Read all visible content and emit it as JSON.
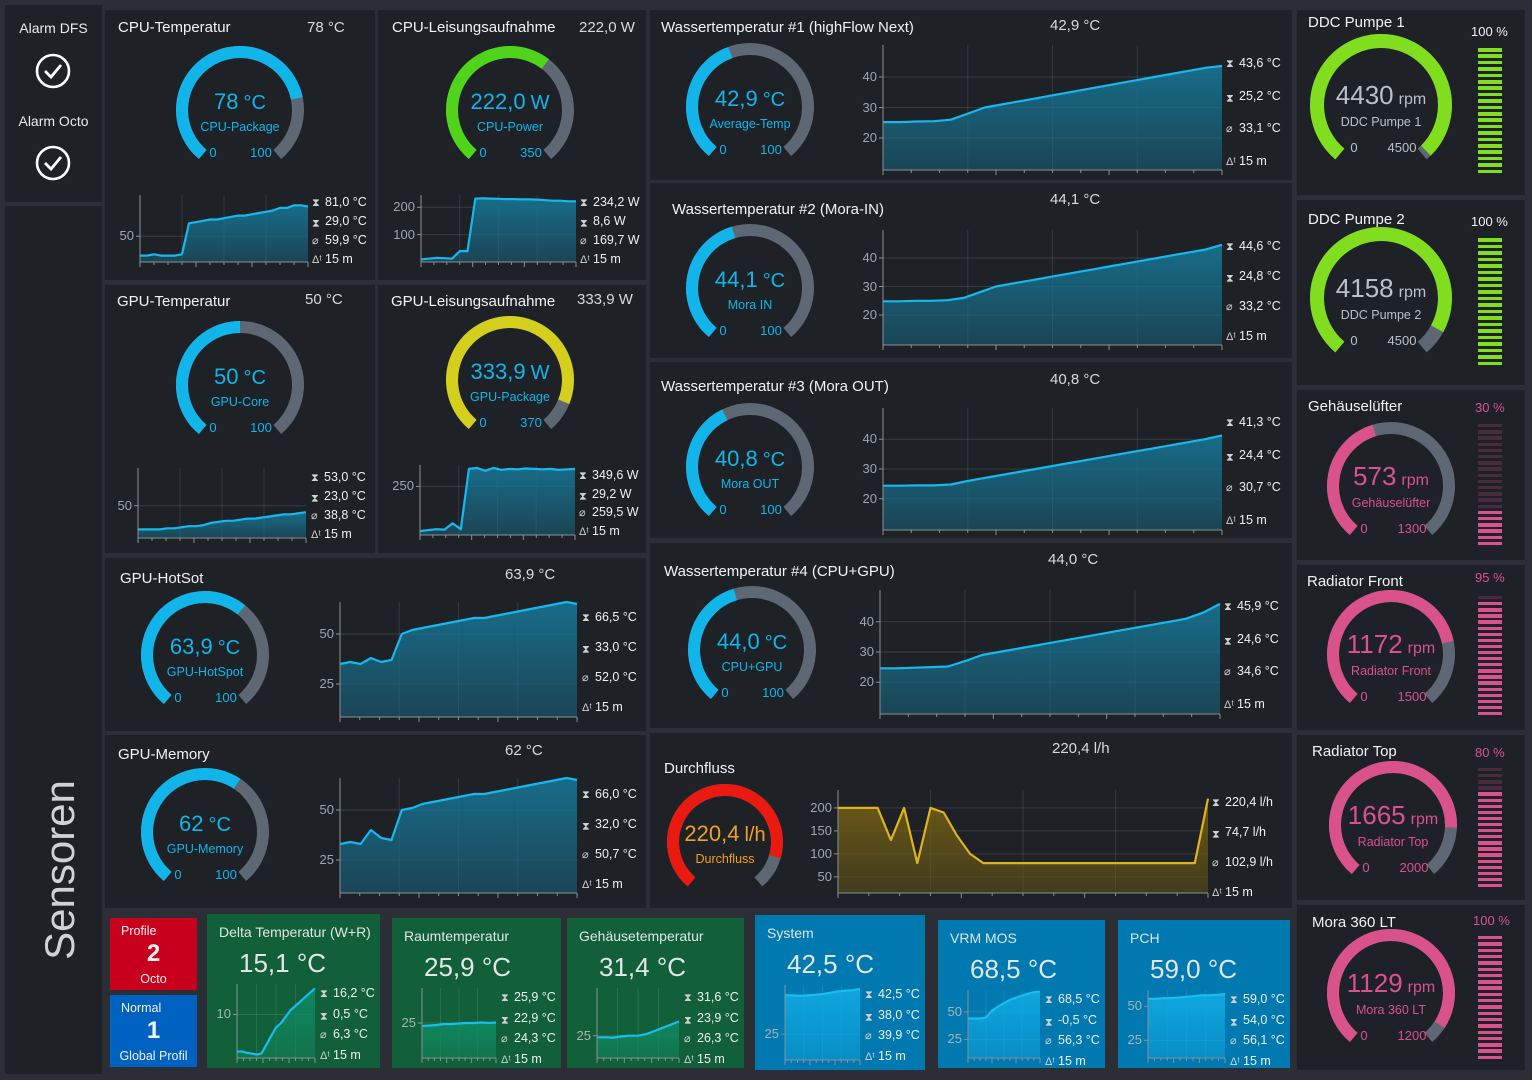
{
  "sidebar": {
    "alarms": [
      {
        "label": "Alarm DFS",
        "icon": "check-circle-icon"
      },
      {
        "label": "Alarm Octo",
        "icon": "check-circle-icon"
      }
    ],
    "title": "Sensoren"
  },
  "colors": {
    "blue": "#12b5ea",
    "green": "#4fd41a",
    "yellow": "#d3cf1c",
    "pink": "#d9528a",
    "red": "#ea1a10",
    "pump_green": "#80de1f",
    "track": "#5e6774",
    "panel": "#1e2227"
  },
  "panels": [
    {
      "id": "cpu-temperature",
      "title": "CPU-Temperatur",
      "header": "78 °C",
      "gauge": {
        "value": "78",
        "unit": "°C",
        "label": "CPU-Package",
        "min": "0",
        "max": "100",
        "fraction": 0.78,
        "color": "#12b5ea",
        "text_color": "#12b5ea"
      },
      "stats": {
        "max": "81,0 °C",
        "min": "29,0 °C",
        "avg": "59,9 °C",
        "span": "15 m"
      },
      "chart": {
        "ylim": [
          30,
          82
        ],
        "ticks": [
          "50"
        ],
        "tick_values": [
          50
        ],
        "series": [
          35,
          35,
          36,
          35,
          35,
          35,
          36,
          60,
          61,
          62,
          63,
          63,
          64,
          65,
          66,
          66,
          67,
          68,
          69,
          70,
          72,
          72,
          74,
          74,
          73
        ]
      }
    },
    {
      "id": "cpu-power",
      "title": "CPU-Leisungsaufnahme",
      "header": "222,0 W",
      "gauge": {
        "value": "222,0",
        "unit": "W",
        "label": "CPU-Power",
        "min": "0",
        "max": "350",
        "fraction": 0.634,
        "color": "#4fd41a",
        "text_color": "#12b5ea"
      },
      "stats": {
        "max": "234,2 W",
        "min": "8,6 W",
        "avg": "169,7 W",
        "span": "15 m"
      },
      "chart": {
        "ylim": [
          0,
          245
        ],
        "ticks": [
          "100",
          "200"
        ],
        "tick_values": [
          100,
          200
        ],
        "series": [
          10,
          12,
          15,
          14,
          12,
          40,
          40,
          232,
          233,
          232,
          231,
          230,
          230,
          229,
          229,
          228,
          226,
          224,
          224,
          222,
          222
        ]
      }
    },
    {
      "id": "gpu-temperature",
      "title": "GPU-Temperatur",
      "header": "50 °C",
      "gauge": {
        "value": "50",
        "unit": "°C",
        "label": "GPU-Core",
        "min": "0",
        "max": "100",
        "fraction": 0.5,
        "color": "#12b5ea",
        "text_color": "#12b5ea"
      },
      "stats": {
        "max": "53,0 °C",
        "min": "23,0 °C",
        "avg": "38,8 °C",
        "span": "15 m"
      },
      "chart": {
        "ylim": [
          20,
          85
        ],
        "ticks": [
          "50"
        ],
        "tick_values": [
          50
        ],
        "series": [
          28,
          28,
          28,
          28,
          29,
          29,
          30,
          31,
          31,
          32,
          34,
          35,
          36,
          36,
          37,
          38,
          38,
          39,
          40,
          41,
          42,
          42,
          43,
          44
        ]
      }
    },
    {
      "id": "gpu-power",
      "title": "GPU-Leisungsaufnahme",
      "header": "333,9 W",
      "gauge": {
        "value": "333,9",
        "unit": "W",
        "label": "GPU-Package",
        "min": "0",
        "max": "370",
        "fraction": 0.9,
        "color": "#d3cf1c",
        "text_color": "#12b5ea"
      },
      "stats": {
        "max": "349,6 W",
        "min": "29,2 W",
        "avg": "259,5 W",
        "span": "15 m"
      },
      "chart": {
        "ylim": [
          0,
          360
        ],
        "ticks": [
          "250"
        ],
        "tick_values": [
          250
        ],
        "series": [
          20,
          25,
          30,
          28,
          60,
          30,
          340,
          345,
          330,
          345,
          335,
          340,
          338,
          342,
          340,
          338,
          340,
          335,
          338,
          340
        ]
      }
    },
    {
      "id": "gpu-hotspot",
      "title": "GPU-HotSot",
      "header": "63,9 °C",
      "gauge": {
        "value": "63,9",
        "unit": "°C",
        "label": "GPU-HotSpot",
        "min": "0",
        "max": "100",
        "fraction": 0.639,
        "color": "#12b5ea",
        "text_color": "#12b5ea"
      },
      "stats": {
        "max": "66,5 °C",
        "min": "33,0 °C",
        "avg": "52,0 °C",
        "span": "15 m"
      },
      "chart": {
        "ylim": [
          8.5,
          66
        ],
        "ticks": [
          "25",
          "50"
        ],
        "tick_values": [
          25,
          50
        ],
        "series": [
          35,
          36,
          35,
          38,
          36,
          37,
          50,
          52,
          53,
          54,
          55,
          56,
          57,
          58,
          58,
          59,
          60,
          61,
          62,
          63,
          64,
          65,
          66,
          65
        ]
      }
    },
    {
      "id": "gpu-memory",
      "title": "GPU-Memory",
      "header": "62 °C",
      "gauge": {
        "value": "62",
        "unit": "°C",
        "label": "GPU-Memory",
        "min": "0",
        "max": "100",
        "fraction": 0.62,
        "color": "#12b5ea",
        "text_color": "#12b5ea"
      },
      "stats": {
        "max": "66,0 °C",
        "min": "32,0 °C",
        "avg": "50,7 °C",
        "span": "15 m"
      },
      "chart": {
        "ylim": [
          8.5,
          66
        ],
        "ticks": [
          "25",
          "50"
        ],
        "tick_values": [
          25,
          50
        ],
        "series": [
          33,
          34,
          33,
          40,
          36,
          35,
          50,
          51,
          53,
          54,
          55,
          56,
          57,
          58,
          58,
          59,
          60,
          61,
          62,
          63,
          64,
          65,
          66,
          65
        ]
      }
    },
    {
      "id": "water-temp-1",
      "title": "Wassertemperatur #1 (highFlow Next)",
      "header": "42,9 °C",
      "gauge": {
        "value": "42,9",
        "unit": "°C",
        "label": "Average-Temp",
        "min": "0",
        "max": "100",
        "fraction": 0.429,
        "color": "#12b5ea",
        "text_color": "#12b5ea"
      },
      "stats": {
        "max": "43,6 °C",
        "min": "25,2 °C",
        "avg": "33,1 °C",
        "span": "15 m"
      },
      "chart": {
        "ylim": [
          9.5,
          50.5
        ],
        "ticks": [
          "20",
          "30",
          "40"
        ],
        "tick_values": [
          20,
          30,
          40
        ],
        "series": [
          25.2,
          25.2,
          25.4,
          25.5,
          26,
          28,
          30,
          31,
          32,
          33,
          34,
          35,
          36,
          37,
          38,
          39,
          40,
          41,
          42,
          43,
          43.6
        ]
      }
    },
    {
      "id": "water-temp-2",
      "title": "Wassertemperatur #2 (Mora-IN)",
      "header": "44,1 °C",
      "gauge": {
        "value": "44,1",
        "unit": "°C",
        "label": "Mora IN",
        "min": "0",
        "max": "100",
        "fraction": 0.441,
        "color": "#12b5ea",
        "text_color": "#12b5ea"
      },
      "stats": {
        "max": "44,6 °C",
        "min": "24,8 °C",
        "avg": "33,2 °C",
        "span": "15 m"
      },
      "chart": {
        "ylim": [
          9.5,
          49.8
        ],
        "ticks": [
          "20",
          "30",
          "40"
        ],
        "tick_values": [
          20,
          30,
          40
        ],
        "series": [
          24.8,
          24.8,
          25,
          25,
          25.2,
          26,
          28,
          30,
          31,
          32,
          33,
          34,
          35,
          36,
          37,
          38,
          39,
          40,
          41,
          42,
          43,
          44.6
        ]
      }
    },
    {
      "id": "water-temp-3",
      "title": "Wassertemperatur #3 (Mora OUT)",
      "header": "40,8 °C",
      "gauge": {
        "value": "40,8",
        "unit": "°C",
        "label": "Mora OUT",
        "min": "0",
        "max": "100",
        "fraction": 0.408,
        "color": "#12b5ea",
        "text_color": "#12b5ea"
      },
      "stats": {
        "max": "41,3 °C",
        "min": "24,4 °C",
        "avg": "30,7 °C",
        "span": "15 m"
      },
      "chart": {
        "ylim": [
          9.5,
          50.5
        ],
        "ticks": [
          "20",
          "30",
          "40"
        ],
        "tick_values": [
          20,
          30,
          40
        ],
        "series": [
          24.4,
          24.4,
          24.5,
          24.5,
          24.8,
          26,
          27,
          28,
          29,
          30,
          31,
          32,
          33,
          34,
          35,
          36,
          37,
          38,
          39,
          40,
          41.3
        ]
      }
    },
    {
      "id": "water-temp-4",
      "title": "Wassertemperatur #4 (CPU+GPU)",
      "header": "44,0 °C",
      "gauge": {
        "value": "44,0",
        "unit": "°C",
        "label": "CPU+GPU",
        "min": "0",
        "max": "100",
        "fraction": 0.44,
        "color": "#12b5ea",
        "text_color": "#12b5ea"
      },
      "stats": {
        "max": "45,9 °C",
        "min": "24,6 °C",
        "avg": "34,6 °C",
        "span": "15 m"
      },
      "chart": {
        "ylim": [
          9.5,
          50.5
        ],
        "ticks": [
          "20",
          "30",
          "40"
        ],
        "tick_values": [
          20,
          30,
          40
        ],
        "series": [
          24.6,
          24.6,
          24.8,
          25,
          25.2,
          27,
          29,
          30,
          31,
          32,
          33,
          34,
          35,
          36,
          37,
          38,
          39,
          40,
          41,
          43,
          45.9
        ]
      }
    },
    {
      "id": "flow",
      "title": "Durchfluss",
      "header": "220,4 l/h",
      "gauge": {
        "value": "220,4",
        "unit": "l/h",
        "label": "Durchfluss",
        "fraction": 0.88,
        "color": "#ea1a10",
        "text_color": "#f0a020"
      },
      "stats": {
        "max": "220,4 l/h",
        "min": "74,7 l/h",
        "avg": "102,9 l/h",
        "span": "15 m"
      },
      "chart": {
        "ylim": [
          15,
          239
        ],
        "ticks": [
          "50",
          "100",
          "150",
          "200"
        ],
        "tick_values": [
          50,
          100,
          150,
          200
        ],
        "line_color": "#e0b21c",
        "fill_color": "#6e5b14",
        "series": [
          200,
          200,
          200,
          200,
          130,
          200,
          80,
          200,
          190,
          140,
          100,
          80,
          80,
          80,
          80,
          80,
          80,
          80,
          80,
          80,
          80,
          80,
          80,
          80,
          80,
          80,
          80,
          80,
          220
        ]
      }
    }
  ],
  "fans": [
    {
      "id": "ddc-pump-1",
      "title": "DDC Pumpe 1",
      "percent": "100 %",
      "percent_value": 100,
      "gauge": {
        "value": "4430",
        "unit": "rpm",
        "label": "DDC Pumpe 1",
        "min": "0",
        "max": "4500",
        "fraction": 0.984,
        "color": "#80de1f",
        "text_color": "#b9c0c7"
      }
    },
    {
      "id": "ddc-pump-2",
      "title": "DDC Pumpe 2",
      "percent": "100 %",
      "percent_value": 100,
      "gauge": {
        "value": "4158",
        "unit": "rpm",
        "label": "DDC Pumpe 2",
        "min": "0",
        "max": "4500",
        "fraction": 0.924,
        "color": "#80de1f",
        "text_color": "#b9c0c7"
      }
    },
    {
      "id": "case-fan",
      "title": "Gehäuselüfter",
      "percent": "30 %",
      "percent_value": 30,
      "gauge": {
        "value": "573",
        "unit": "rpm",
        "label": "Gehäuselüfter",
        "min": "0",
        "max": "1300",
        "fraction": 0.44,
        "color": "#d9528a",
        "text_color": "#d9528a"
      }
    },
    {
      "id": "radiator-front",
      "title": "Radiator Front",
      "percent": "95 %",
      "percent_value": 95,
      "gauge": {
        "value": "1172",
        "unit": "rpm",
        "label": "Radiator Front",
        "min": "0",
        "max": "1500",
        "fraction": 0.78,
        "color": "#d9528a",
        "text_color": "#d9528a"
      }
    },
    {
      "id": "radiator-top",
      "title": "Radiator Top",
      "percent": "80 %",
      "percent_value": 80,
      "gauge": {
        "value": "1665",
        "unit": "rpm",
        "label": "Radiator Top",
        "min": "0",
        "max": "2000",
        "fraction": 0.83,
        "color": "#d9528a",
        "text_color": "#d9528a"
      }
    },
    {
      "id": "mora-360-lt",
      "title": "Mora 360 LT",
      "percent": "100 %",
      "percent_value": 100,
      "gauge": {
        "value": "1129",
        "unit": "rpm",
        "label": "Mora 360 LT",
        "min": "0",
        "max": "1200",
        "fraction": 0.94,
        "color": "#d9528a",
        "text_color": "#d9528a"
      }
    }
  ],
  "profiles": [
    {
      "caption": "Profile",
      "number": "2",
      "name": "Octo",
      "color": "#c8001e"
    },
    {
      "caption": "Normal",
      "number": "1",
      "name": "Global Profil",
      "color": "#0062c0"
    }
  ],
  "tiles": [
    {
      "id": "delta-temperature",
      "title": "Delta Temperatur (W+R)",
      "value": "15,1 °C",
      "color": "#116039",
      "stats": {
        "max": "16,2 °C",
        "min": "0,5 °C",
        "avg": "6,3 °C",
        "span": "15 m"
      },
      "chart": {
        "ylim": [
          0,
          17
        ],
        "ticks": [
          "10"
        ],
        "tick_values": [
          10
        ],
        "series": [
          1.5,
          1.5,
          1.2,
          1,
          0.8,
          1,
          3,
          5,
          7,
          8,
          9.5,
          11,
          12,
          13,
          14,
          15,
          16
        ]
      }
    },
    {
      "id": "room-temperature",
      "title": "Raumtemperatur",
      "value": "25,9 °C",
      "color": "#116039",
      "stats": {
        "max": "25,9 °C",
        "min": "22,9 °C",
        "avg": "24,3 °C",
        "span": "15 m"
      },
      "chart": {
        "ylim": [
          18,
          32
        ],
        "ticks": [
          "25"
        ],
        "tick_values": [
          25
        ],
        "series": [
          24.4,
          24.5,
          24.6,
          24.8,
          24.8,
          24.9,
          25,
          25,
          25.1,
          25,
          25.1
        ]
      }
    },
    {
      "id": "case-temperature",
      "title": "Gehäusetemperatur",
      "value": "31,4 °C",
      "color": "#116039",
      "stats": {
        "max": "31,6 °C",
        "min": "23,9 °C",
        "avg": "26,3 °C",
        "span": "15 m"
      },
      "chart": {
        "ylim": [
          18,
          40
        ],
        "ticks": [
          "25"
        ],
        "tick_values": [
          25
        ],
        "series": [
          24.5,
          24.5,
          24.4,
          24.8,
          25,
          25,
          25.5,
          26.5,
          27.5,
          28.5,
          29.5
        ]
      }
    },
    {
      "id": "system-temperature",
      "title": "System",
      "value": "42,5 °C",
      "color": "#0078b0",
      "stats": {
        "max": "42,5 °C",
        "min": "38,0 °C",
        "avg": "39,9 °C",
        "span": "15 m"
      },
      "chart": {
        "ylim": [
          15,
          44
        ],
        "ticks": [
          "25"
        ],
        "tick_values": [
          25
        ],
        "series": [
          40,
          40,
          39.8,
          40,
          40.2,
          40.5,
          41,
          41.5,
          41.8,
          42,
          42.5
        ]
      }
    },
    {
      "id": "vrm-mos-temperature",
      "title": "VRM MOS",
      "value": "68,5 °C",
      "color": "#0078b0",
      "stats": {
        "max": "68,5 °C",
        "min": "-0,5 °C",
        "avg": "56,3 °C",
        "span": "15 m"
      },
      "chart": {
        "ylim": [
          8,
          70
        ],
        "ticks": [
          "25",
          "50"
        ],
        "tick_values": [
          25,
          50
        ],
        "series": [
          44,
          44,
          44,
          45,
          51,
          55,
          58,
          61,
          63,
          65,
          66.5,
          68,
          68.5
        ]
      }
    },
    {
      "id": "pch-temperature",
      "title": "PCH",
      "value": "59,0 °C",
      "color": "#0078b0",
      "stats": {
        "max": "59,0 °C",
        "min": "54,0 °C",
        "avg": "56,1 °C",
        "span": "15 m"
      },
      "chart": {
        "ylim": [
          12,
          62
        ],
        "ticks": [
          "25",
          "50"
        ],
        "tick_values": [
          25,
          50
        ],
        "series": [
          55.5,
          55.5,
          56,
          56,
          56.5,
          57,
          57.5,
          58,
          58.2,
          58.5,
          59
        ]
      }
    }
  ]
}
